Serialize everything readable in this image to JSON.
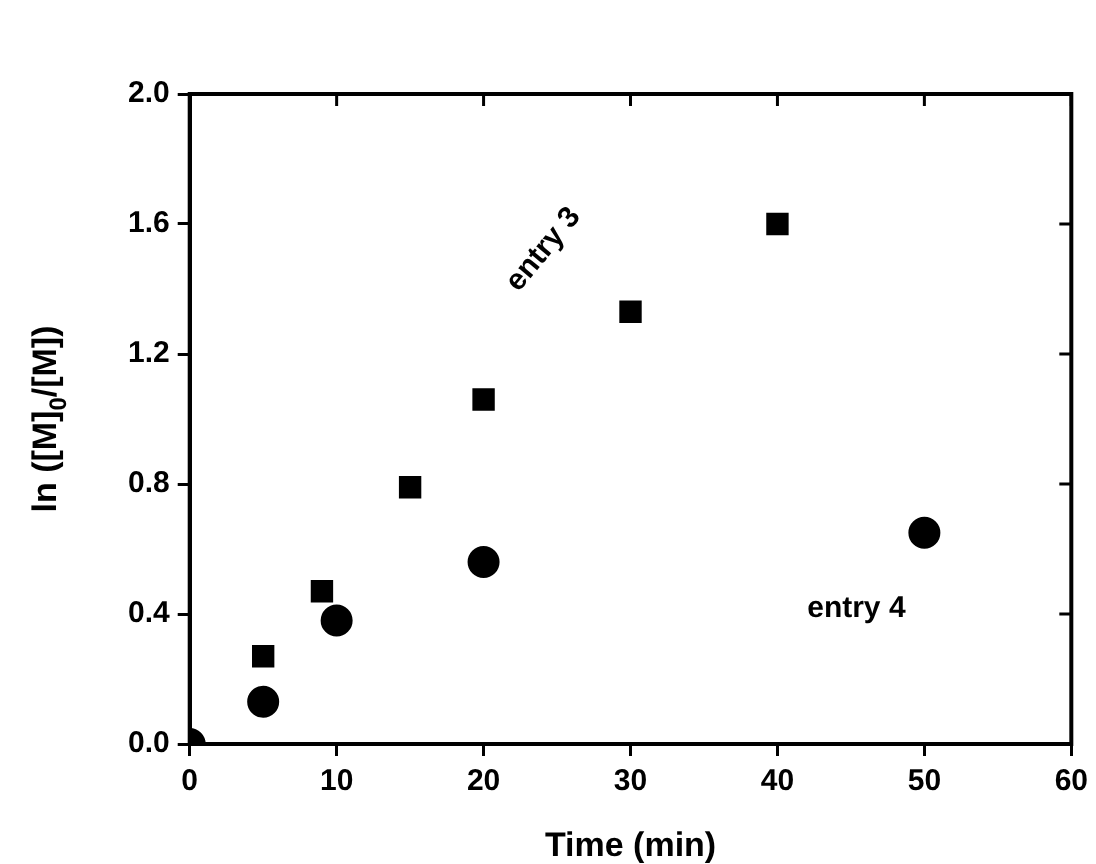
{
  "chart_data": {
    "type": "scatter",
    "xlabel": "Time (min)",
    "ylabel": "ln ([M]$_{0}$/[M])",
    "xlim": [
      0,
      60
    ],
    "xticks": [
      0,
      10,
      20,
      30,
      40,
      50,
      60
    ],
    "ylim": [
      0,
      2.0
    ],
    "yticks": [
      {
        "value": 0,
        "label": "0.0"
      },
      {
        "value": 0.4,
        "label": "0.4"
      },
      {
        "value": 0.8,
        "label": "0.8"
      },
      {
        "value": 1.2,
        "label": "1.2"
      },
      {
        "value": 1.6,
        "label": "1.6"
      },
      {
        "value": 2.0,
        "label": "2.0"
      }
    ],
    "grid": false,
    "series": [
      {
        "name": "entry 3",
        "color": "#000000",
        "marker": "square",
        "x": [
          5,
          9,
          15,
          20,
          30,
          40
        ],
        "values": [
          0.27,
          0.47,
          0.79,
          1.06,
          1.33,
          1.6
        ]
      },
      {
        "name": "entry 4",
        "color": "#000000",
        "marker": "circle",
        "x": [
          0,
          5,
          10,
          20,
          50
        ],
        "values": [
          0,
          0.13,
          0.38,
          0.56,
          0.65
        ]
      }
    ]
  }
}
